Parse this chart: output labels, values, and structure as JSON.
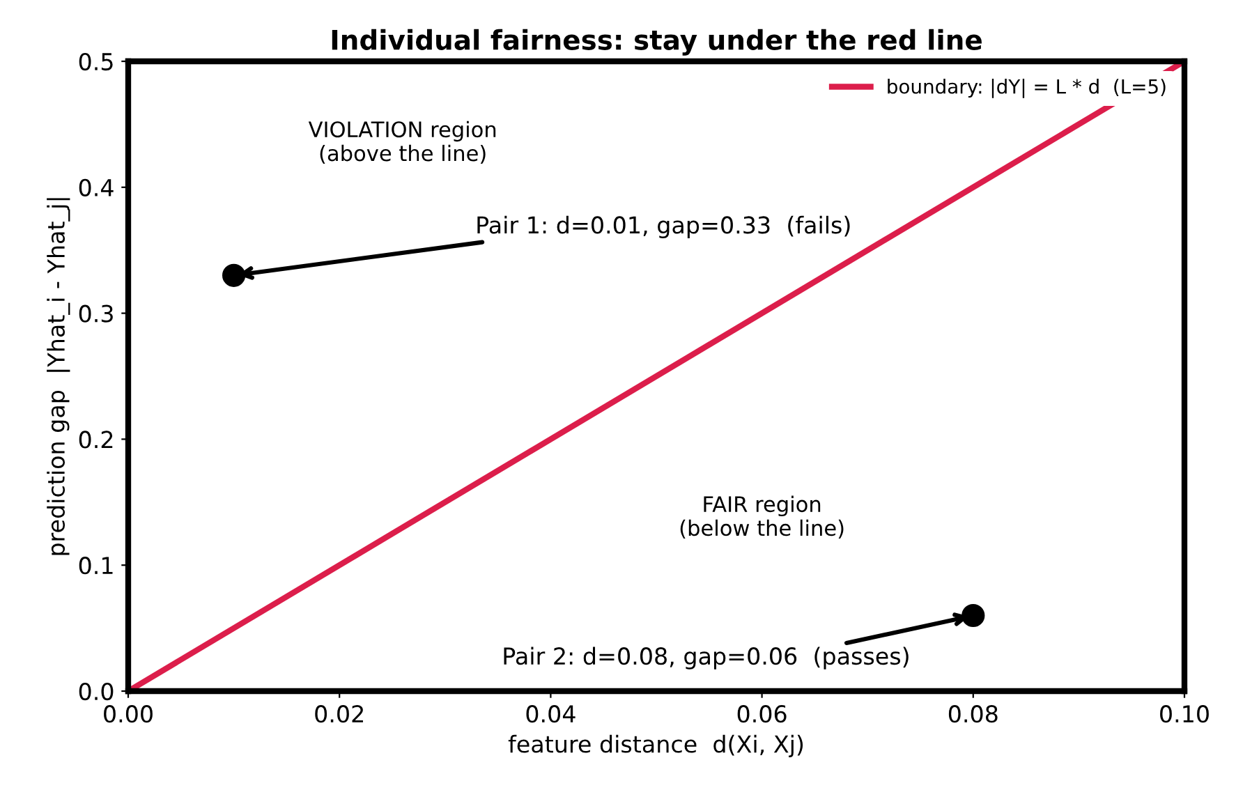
{
  "chart_data": {
    "type": "line",
    "title": "Individual fairness: stay under the red line",
    "xlabel": "feature distance  d(Xi, Xj)",
    "ylabel": "prediction gap  |Yhat_i - Yhat_j|",
    "series": [
      {
        "name": "boundary: |dY| = L * d  (L=5)",
        "type": "line",
        "color": "#dc1e4b",
        "x": [
          0,
          0.1
        ],
        "values": [
          0,
          0.5
        ]
      },
      {
        "type": "scatter",
        "color": "#000000",
        "marker": "circle",
        "x": [
          0.01,
          0.08
        ],
        "values": [
          0.33,
          0.06
        ]
      }
    ],
    "annotations": [
      {
        "text": "Pair 1: d=0.01, gap=0.33  (fails)",
        "x": 0.01,
        "y": 0.33
      },
      {
        "text": "Pair 2: d=0.08, gap=0.06  (passes)",
        "x": 0.08,
        "y": 0.06
      },
      "VIOLATION region\n(above the line)",
      "FAIR region\n(below the line)"
    ],
    "xlim": [
      0,
      0.1
    ],
    "ylim": [
      0,
      0.5
    ],
    "xticks": [
      {
        "value": 0,
        "label": "0.00"
      },
      0.02,
      0.04,
      0.06,
      0.08,
      {
        "value": 0.1,
        "label": "0.10"
      }
    ],
    "yticks": [
      {
        "value": 0,
        "label": "0.0"
      },
      0.1,
      0.2,
      0.3,
      0.4,
      0.5
    ],
    "grid": false,
    "legend": "top right"
  }
}
